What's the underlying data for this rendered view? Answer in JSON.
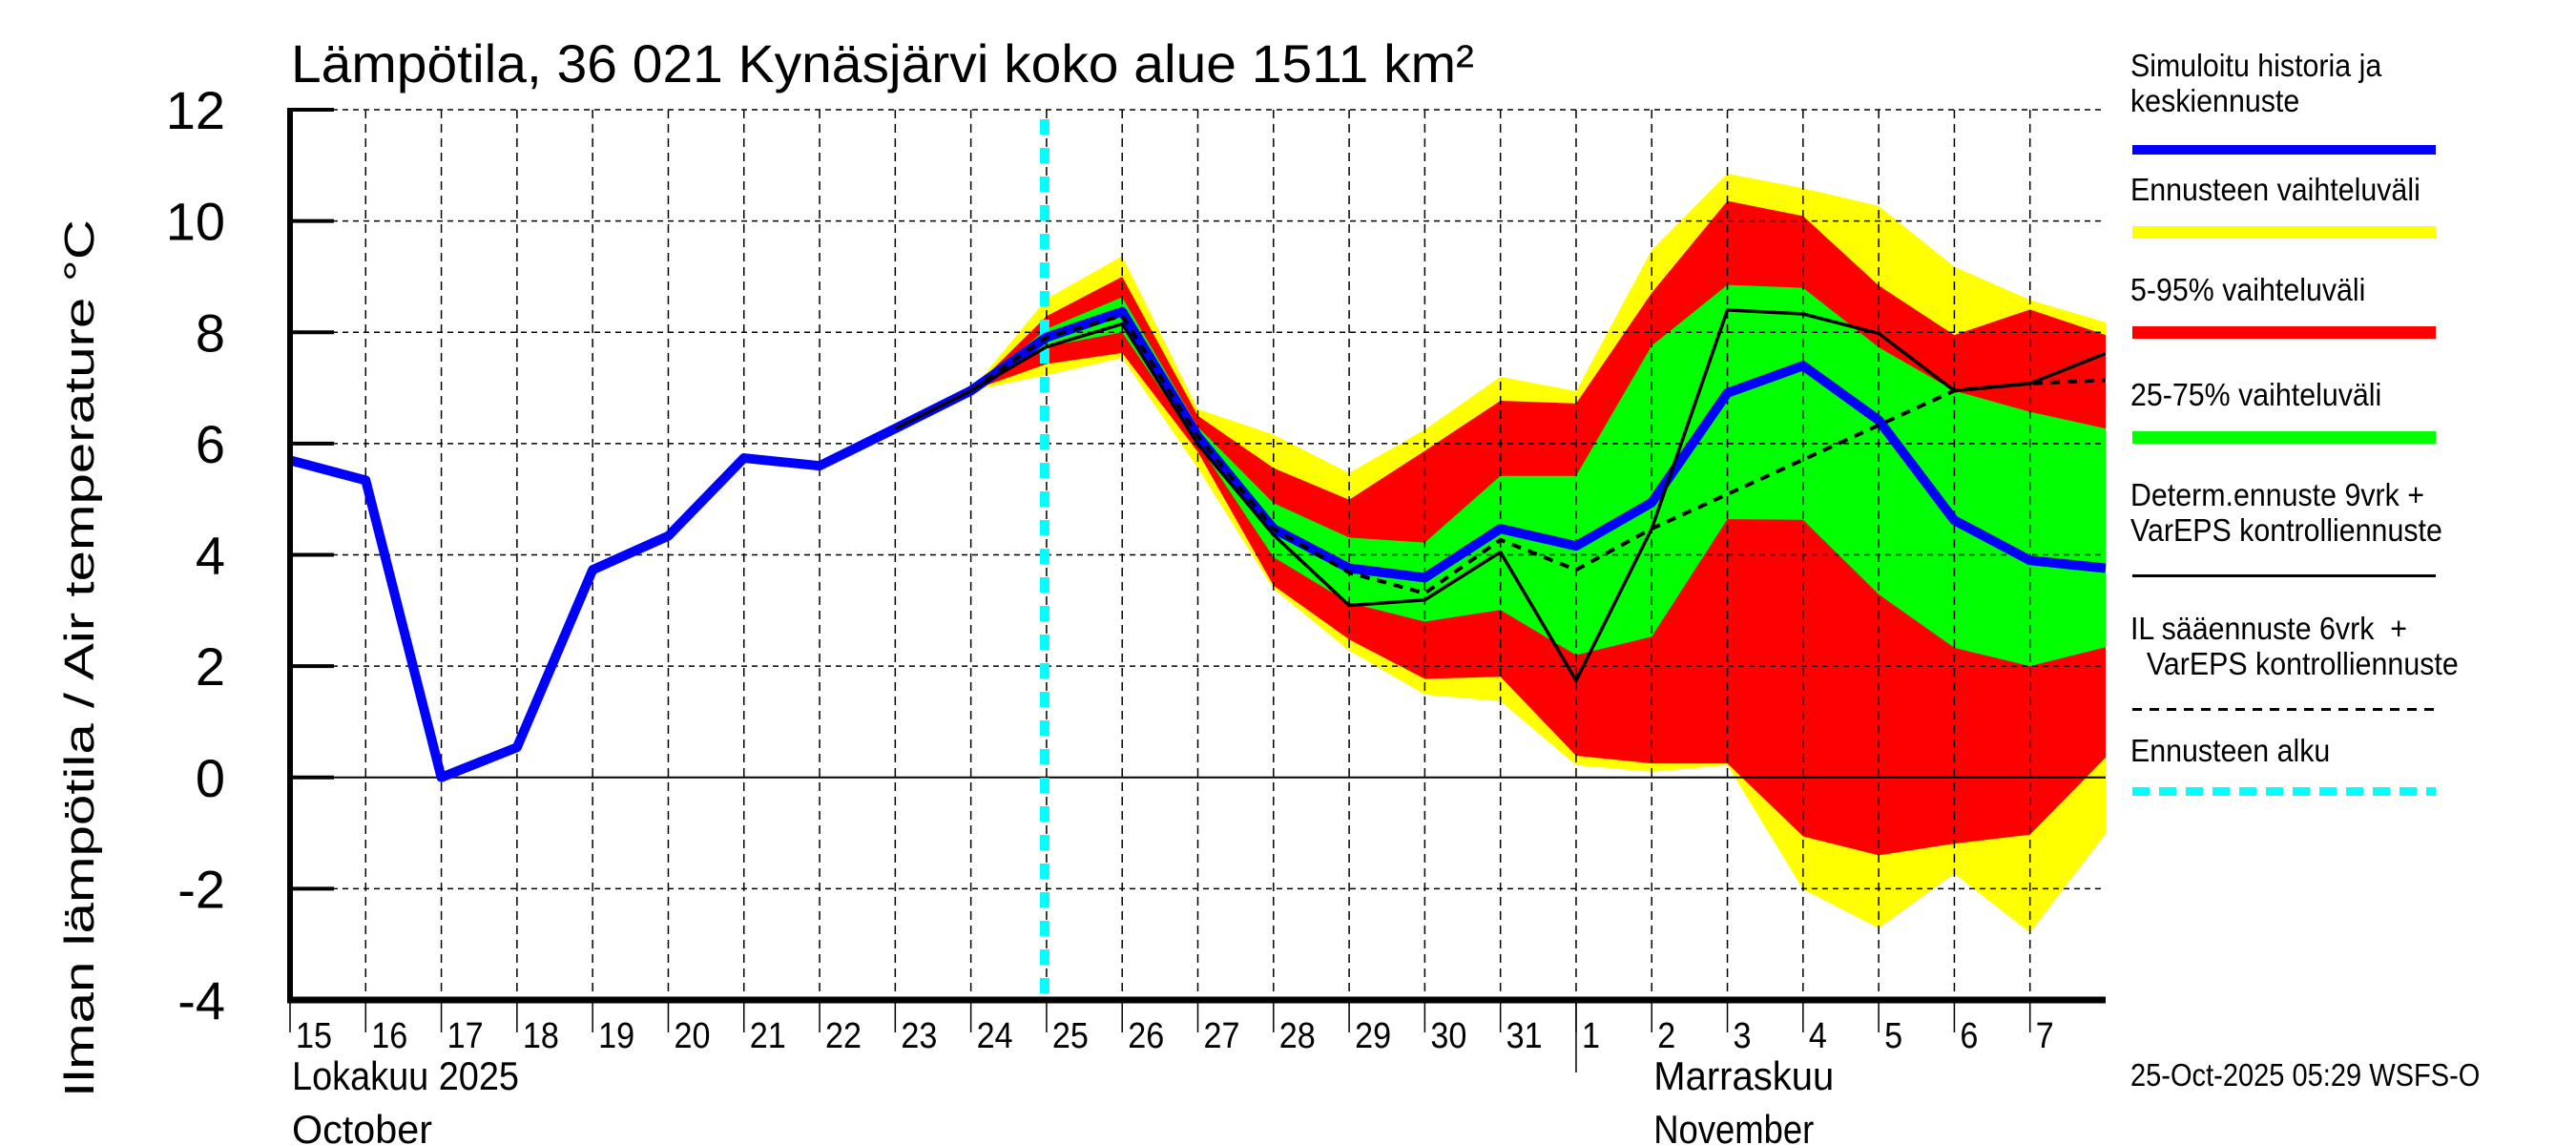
{
  "chart_data": {
    "type": "area",
    "title": "Lämpötila, 36 021 Kynäsjärvi koko alue 1511 km²",
    "ylabel": "Ilman lämpötila / Air temperature   °C",
    "xlabel": "",
    "ylim": [
      -4,
      12
    ],
    "yticks": [
      12,
      10,
      8,
      6,
      4,
      2,
      0,
      -2,
      -4
    ],
    "grid": true,
    "x_start_day": "2025-10-15",
    "x_range_days": [
      0,
      24
    ],
    "x_tick_labels": [
      "15",
      "16",
      "17",
      "18",
      "19",
      "20",
      "21",
      "22",
      "23",
      "24",
      "25",
      "26",
      "27",
      "28",
      "29",
      "30",
      "31",
      "1",
      "2",
      "3",
      "4",
      "5",
      "6",
      "7"
    ],
    "month_labels": [
      {
        "lines": [
          "Lokakuu   2025",
          "October"
        ],
        "day_index": 0
      },
      {
        "lines": [
          "Marraskuu",
          "November"
        ],
        "day_index": 18
      }
    ],
    "month_divider_day_index": 17,
    "forecast_start_day_index": 10,
    "x_index": [
      0,
      1,
      2,
      3,
      4,
      5,
      6,
      7,
      8,
      9,
      10,
      11,
      12,
      13,
      14,
      15,
      16,
      17,
      18,
      19,
      20,
      21,
      22,
      23,
      24
    ],
    "series": [
      {
        "name": "Simuloitu historia ja keskiennuste",
        "kind": "line",
        "color": "#0000ff",
        "x": [
          0,
          1,
          2,
          3,
          4,
          5,
          6,
          7,
          8,
          9,
          10,
          11,
          12,
          13,
          14,
          15,
          16,
          17,
          18,
          19,
          20,
          21,
          22,
          23,
          24
        ],
        "values": [
          5.7,
          5.34,
          0.0,
          0.54,
          3.73,
          4.34,
          5.74,
          5.6,
          6.27,
          6.95,
          7.91,
          8.37,
          6.13,
          4.47,
          3.76,
          3.59,
          4.47,
          4.16,
          4.94,
          6.91,
          7.4,
          6.42,
          4.62,
          3.9,
          3.76
        ]
      },
      {
        "name": "Determ.ennuste 9vrk + VarEPS kontrolliennuste",
        "kind": "line",
        "style": "solid",
        "color": "#000000",
        "x": [
          8,
          9,
          10,
          11,
          12,
          13,
          14,
          15,
          16,
          17,
          18,
          19,
          20,
          21,
          22,
          23,
          24
        ],
        "values": [
          6.27,
          6.95,
          7.74,
          8.15,
          5.99,
          4.36,
          3.09,
          3.19,
          4.05,
          1.74,
          4.47,
          8.4,
          8.33,
          7.98,
          6.95,
          7.08,
          7.62
        ]
      },
      {
        "name": "IL sääennuste 6vrk + VarEPS kontrolliennuste",
        "kind": "line",
        "style": "dashed",
        "color": "#000000",
        "x": [
          9,
          10,
          11,
          12,
          13,
          14,
          15,
          16,
          17,
          18,
          22,
          23,
          24
        ],
        "values": [
          6.95,
          7.91,
          8.3,
          6.13,
          4.47,
          3.68,
          3.31,
          4.27,
          3.73,
          4.47,
          6.95,
          7.08,
          7.14
        ]
      }
    ],
    "bands": [
      {
        "name": "Ennusteen vaihteluväli",
        "color": "#ffff00",
        "x": [
          9,
          10,
          11,
          12,
          13,
          14,
          15,
          16,
          17,
          18,
          19,
          20,
          21,
          22,
          23,
          24
        ],
        "upper": [
          6.95,
          8.6,
          9.37,
          6.62,
          6.16,
          5.47,
          6.25,
          7.2,
          6.94,
          9.48,
          10.85,
          10.59,
          10.27,
          9.18,
          8.58,
          8.18
        ],
        "lower": [
          6.95,
          7.23,
          7.54,
          5.56,
          3.39,
          2.28,
          1.49,
          1.37,
          0.22,
          0.1,
          0.22,
          -2.01,
          -2.71,
          -1.73,
          -2.79,
          -1.01
        ]
      },
      {
        "name": "5-95% vaihteluväli",
        "color": "#ff0000",
        "x": [
          9,
          10,
          11,
          12,
          13,
          14,
          15,
          16,
          17,
          18,
          19,
          20,
          21,
          22,
          23,
          24
        ],
        "upper": [
          6.95,
          8.29,
          9.0,
          6.5,
          5.56,
          4.99,
          5.87,
          6.77,
          6.72,
          8.71,
          10.36,
          10.09,
          8.84,
          7.95,
          8.41,
          7.95
        ],
        "lower": [
          6.95,
          7.43,
          7.63,
          5.85,
          3.45,
          2.48,
          1.77,
          1.81,
          0.39,
          0.25,
          0.25,
          -1.06,
          -1.4,
          -1.19,
          -1.03,
          0.36
        ]
      },
      {
        "name": "25-75% vaihteluväli",
        "color": "#00ff00",
        "x": [
          9,
          10,
          11,
          12,
          13,
          14,
          15,
          16,
          17,
          18,
          19,
          20,
          21,
          22,
          23,
          24
        ],
        "upper": [
          6.95,
          8.06,
          8.63,
          6.3,
          4.93,
          4.31,
          4.22,
          5.42,
          5.42,
          7.76,
          8.85,
          8.8,
          7.73,
          6.95,
          6.57,
          6.27
        ],
        "lower": [
          6.95,
          7.74,
          8.0,
          6.0,
          3.96,
          3.14,
          2.8,
          3.01,
          2.2,
          2.53,
          4.64,
          4.63,
          3.29,
          2.33,
          2.0,
          2.34
        ]
      }
    ],
    "forecast_start": {
      "name": "Ennusteen alku",
      "color": "#00ffff",
      "x": 10
    }
  },
  "legend": {
    "items": [
      {
        "label": "Simuloitu historia ja\nkeskiennuste",
        "color": "#0000ff",
        "style": "thick"
      },
      {
        "label": "Ennusteen vaihteluväli",
        "color": "#ffff00",
        "style": "band"
      },
      {
        "label": "5-95% vaihteluväli",
        "color": "#ff0000",
        "style": "band"
      },
      {
        "label": "25-75% vaihteluväli",
        "color": "#00ff00",
        "style": "band"
      },
      {
        "label": "Determ.ennuste 9vrk +\nVarEPS kontrolliennuste",
        "color": "#000000",
        "style": "solid"
      },
      {
        "label": "IL sääennuste 6vrk  +\n  VarEPS kontrolliennuste",
        "color": "#000000",
        "style": "dashed"
      },
      {
        "label": "Ennusteen alku",
        "color": "#00ffff",
        "style": "cyan-dashed"
      }
    ]
  },
  "footer": {
    "timestamp": "25-Oct-2025 05:29 WSFS-O"
  }
}
